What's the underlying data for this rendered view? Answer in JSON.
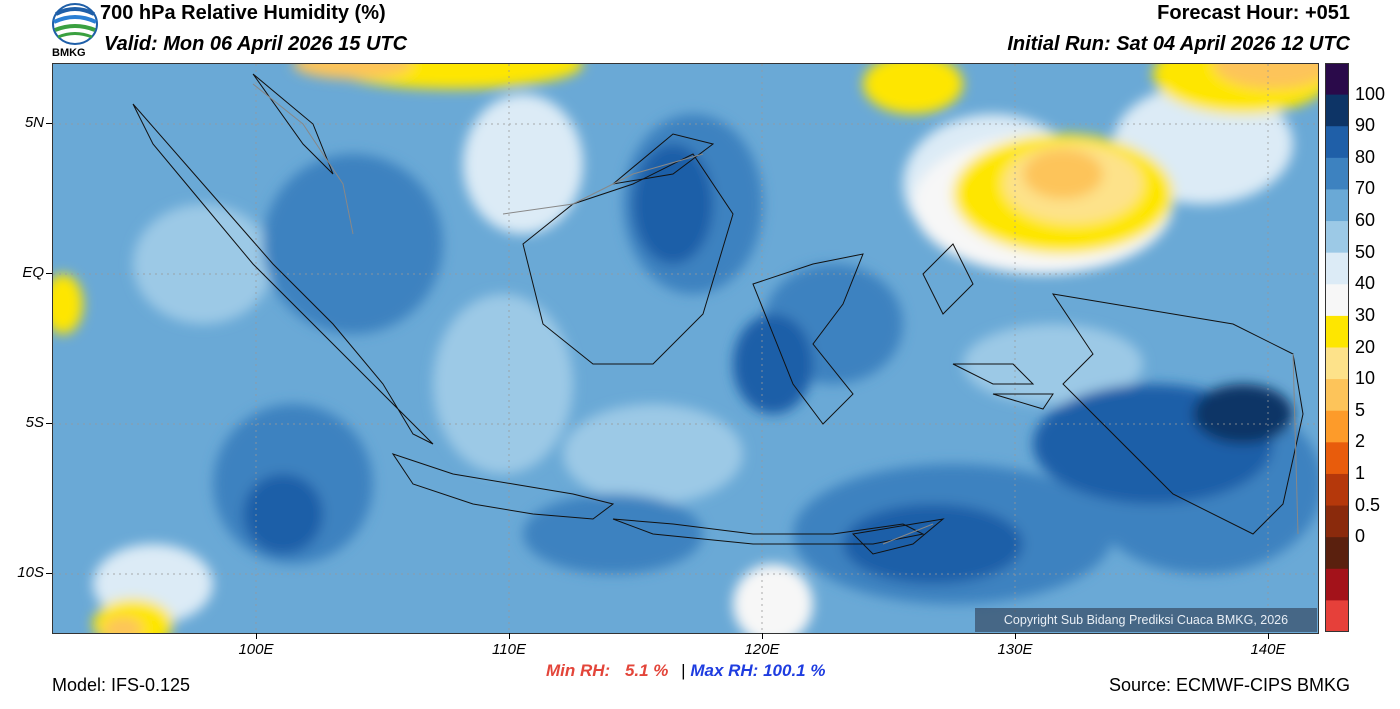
{
  "header": {
    "title": "700 hPa Relative Humidity (%)",
    "valid": "Valid: Mon 06 April 2026 15 UTC",
    "forecast_hour": "Forecast Hour: +051",
    "initial_run": "Initial Run: Sat 04 April 2026 12 UTC",
    "logo_text": "BMKG"
  },
  "axes": {
    "lat_labels": [
      "5N",
      "EQ",
      "5S",
      "10S"
    ],
    "lon_labels": [
      "100E",
      "110E",
      "120E",
      "130E",
      "140E"
    ]
  },
  "colorbar": {
    "labels": [
      "100",
      "90",
      "80",
      "70",
      "60",
      "50",
      "40",
      "30",
      "20",
      "10",
      "5",
      "2",
      "1",
      "0.5",
      "0"
    ],
    "colors": [
      "#2a0a4a",
      "#0d3466",
      "#1f5fa8",
      "#3d82c0",
      "#6aa9d6",
      "#9cc9e6",
      "#dcebf6",
      "#f7f7f7",
      "#fee600",
      "#fde28a",
      "#fdc45a",
      "#fd9b2a",
      "#e85c0c",
      "#b5380b",
      "#8a2a0c",
      "#5a200e",
      "#a3121a",
      "#e6403a"
    ]
  },
  "stats": {
    "min_label": "Min RH:",
    "min_value": "5.1 %",
    "separator": "|",
    "max_label": "Max RH:",
    "max_value": "100.1 %"
  },
  "footer": {
    "model": "Model: IFS-0.125",
    "source": "Source: ECMWF-CIPS BMKG",
    "copyright": "Copyright Sub Bidang Prediksi Cuaca BMKG, 2026"
  }
}
